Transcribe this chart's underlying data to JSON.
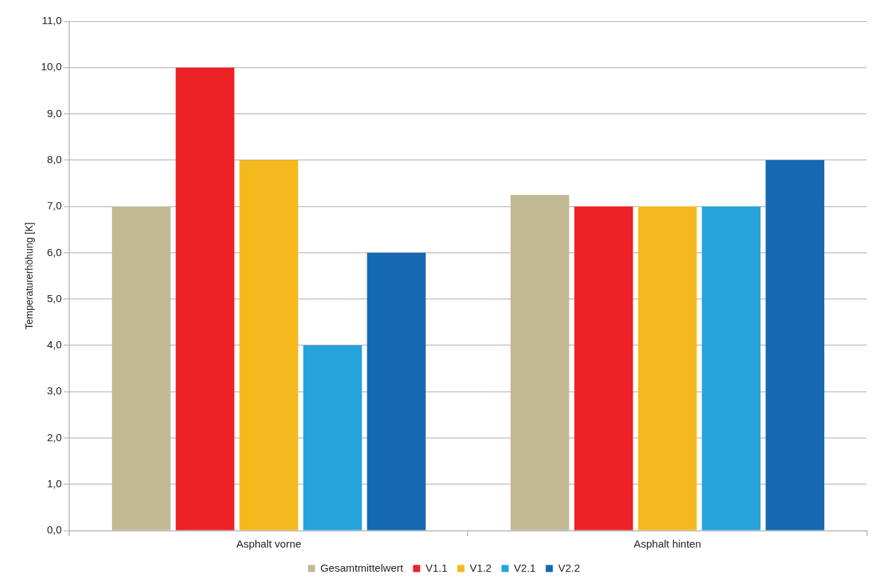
{
  "chart_data": {
    "type": "bar",
    "ylabel": "Temperaturerhöhung [K]",
    "categories": [
      "Asphalt vorne",
      "Asphalt hinten"
    ],
    "series": [
      {
        "name": "Gesamtmittelwert",
        "color": "#c2b995",
        "values": [
          7,
          7.25
        ]
      },
      {
        "name": "V1.1",
        "color": "#ec2227",
        "values": [
          10,
          7
        ]
      },
      {
        "name": "V1.2",
        "color": "#f5b91e",
        "values": [
          8,
          7
        ]
      },
      {
        "name": "V2.1",
        "color": "#27a3dc",
        "values": [
          4,
          7
        ]
      },
      {
        "name": "V2.2",
        "color": "#1569b2",
        "values": [
          6,
          8
        ]
      }
    ],
    "ylim": [
      0,
      11
    ],
    "yticks": [
      {
        "value": 0,
        "label": "0,0"
      },
      {
        "value": 1,
        "label": "1,0"
      },
      {
        "value": 2,
        "label": "2,0"
      },
      {
        "value": 3,
        "label": "3,0"
      },
      {
        "value": 4,
        "label": "4,0"
      },
      {
        "value": 5,
        "label": "5,0"
      },
      {
        "value": 6,
        "label": "6,0"
      },
      {
        "value": 7,
        "label": "7,0"
      },
      {
        "value": 8,
        "label": "8,0"
      },
      {
        "value": 9,
        "label": "9,0"
      },
      {
        "value": 10,
        "label": "10,0"
      },
      {
        "value": 11,
        "label": "11,0"
      }
    ],
    "grid": "y",
    "legend": "bottom"
  }
}
